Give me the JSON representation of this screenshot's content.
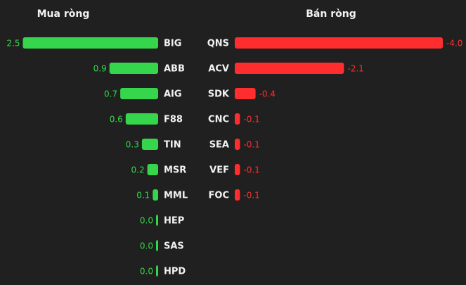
{
  "chart_data": [
    {
      "type": "bar",
      "title": "Mua ròng",
      "categories": [
        "BIG",
        "ABB",
        "AIG",
        "F88",
        "TIN",
        "MSR",
        "MML",
        "HEP",
        "SAS",
        "HPD"
      ],
      "values": [
        2.5,
        0.9,
        0.7,
        0.6,
        0.3,
        0.2,
        0.1,
        0.0,
        0.0,
        0.0
      ],
      "value_labels": [
        "2.5",
        "0.9",
        "0.7",
        "0.6",
        "0.3",
        "0.2",
        "0.1",
        "0.0",
        "0.0",
        "0.0"
      ],
      "color": "#35d64c"
    },
    {
      "type": "bar",
      "title": "Bán ròng",
      "categories": [
        "QNS",
        "ACV",
        "SDK",
        "CNC",
        "SEA",
        "VEF",
        "FOC"
      ],
      "values": [
        -4.0,
        -2.1,
        -0.4,
        -0.1,
        -0.1,
        -0.1,
        -0.1
      ],
      "value_labels": [
        "-4.0",
        "-2.1",
        "-0.4",
        "-0.1",
        "-0.1",
        "-0.1",
        "-0.1"
      ],
      "color": "#ff2d2d"
    }
  ]
}
